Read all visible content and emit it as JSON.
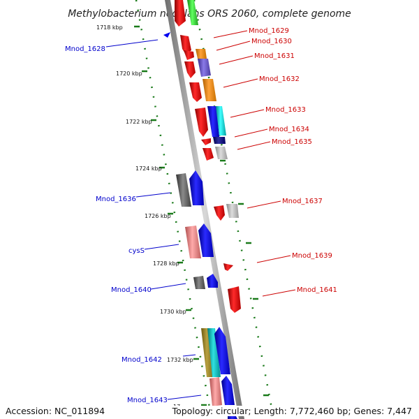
{
  "title": "Methylobacterium nodulans ORS 2060, complete genome",
  "footer": {
    "accession": "Accession: NC_011894",
    "topology": "Topology: circular; Length: 7,772,460 bp; Genes: 7,447"
  },
  "colors": {
    "backbone": "#9a9a9a",
    "tick": "#1a7a1a",
    "left_label": "#0000cc",
    "right_label": "#cc0000"
  },
  "scale_ticks": [
    "1718 kbp",
    "1720 kbp",
    "1722 kbp",
    "1724 kbp",
    "1726 kbp",
    "1728 kbp",
    "1730 kbp",
    "1732 kbp",
    "17"
  ],
  "left_labels": [
    "Mnod_1628",
    "Mnod_1636",
    "cysS",
    "Mnod_1640",
    "Mnod_1642",
    "Mnod_1643"
  ],
  "right_labels": [
    "Mnod_1629",
    "Mnod_1630",
    "Mnod_1631",
    "Mnod_1632",
    "Mnod_1633",
    "Mnod_1634",
    "Mnod_1635",
    "Mnod_1637",
    "Mnod_1639",
    "Mnod_1641"
  ]
}
